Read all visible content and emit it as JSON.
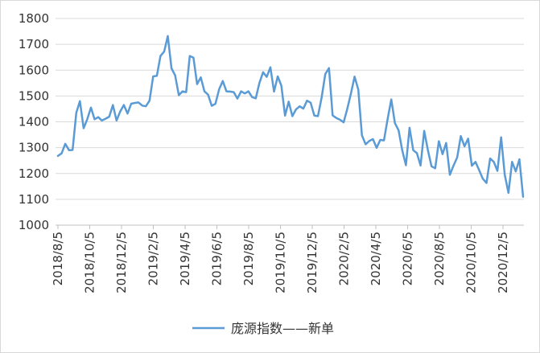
{
  "chart_data": {
    "type": "line",
    "title": "",
    "xlabel": "",
    "ylabel": "",
    "ylim": [
      1000,
      1800
    ],
    "y_ticks": [
      1000,
      1100,
      1200,
      1300,
      1400,
      1500,
      1600,
      1700,
      1800
    ],
    "y_tick_labels": [
      "1000",
      "1100",
      "1200",
      "1300",
      "1400",
      "1500",
      "1600",
      "1700",
      "1800"
    ],
    "x_tick_labels": [
      "2018/8/5",
      "2018/10/5",
      "2018/12/5",
      "2019/2/5",
      "2019/4/5",
      "2019/6/5",
      "2019/8/5",
      "2019/10/5",
      "2019/12/5",
      "2020/2/5",
      "2020/4/5",
      "2020/6/5",
      "2020/8/5",
      "2020/10/5",
      "2020/12/5"
    ],
    "grid": true,
    "legend_position": "bottom",
    "series": [
      {
        "name": "庞源指数——新单",
        "color": "#5b9bd5",
        "values": [
          1268,
          1278,
          1315,
          1290,
          1291,
          1435,
          1480,
          1375,
          1410,
          1455,
          1410,
          1418,
          1405,
          1412,
          1420,
          1465,
          1405,
          1440,
          1465,
          1432,
          1470,
          1473,
          1475,
          1463,
          1460,
          1482,
          1576,
          1578,
          1655,
          1672,
          1732,
          1607,
          1580,
          1503,
          1518,
          1515,
          1655,
          1648,
          1546,
          1572,
          1518,
          1505,
          1462,
          1470,
          1526,
          1558,
          1518,
          1517,
          1515,
          1490,
          1518,
          1510,
          1518,
          1496,
          1491,
          1550,
          1592,
          1574,
          1611,
          1517,
          1576,
          1540,
          1424,
          1478,
          1422,
          1448,
          1460,
          1451,
          1482,
          1474,
          1424,
          1422,
          1495,
          1585,
          1608,
          1425,
          1415,
          1408,
          1398,
          1450,
          1510,
          1575,
          1525,
          1348,
          1313,
          1326,
          1333,
          1299,
          1330,
          1328,
          1410,
          1487,
          1395,
          1367,
          1290,
          1232,
          1377,
          1290,
          1279,
          1231,
          1365,
          1290,
          1228,
          1220,
          1325,
          1275,
          1318,
          1195,
          1230,
          1262,
          1345,
          1305,
          1335,
          1230,
          1245,
          1213,
          1180,
          1163,
          1258,
          1245,
          1210,
          1340,
          1195,
          1125,
          1245,
          1208,
          1255,
          1110
        ]
      }
    ]
  }
}
